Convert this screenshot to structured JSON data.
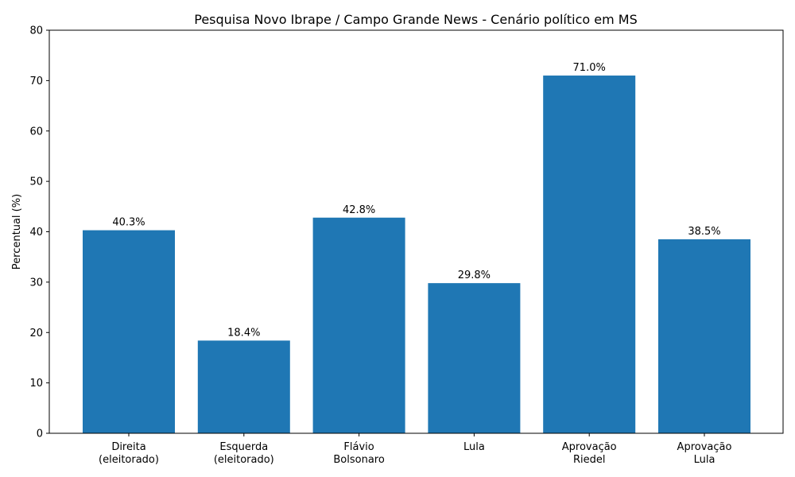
{
  "chart_data": {
    "type": "bar",
    "title": "Pesquisa Novo Ibrape / Campo Grande News - Cenário político em MS",
    "xlabel": "",
    "ylabel": "Percentual (%)",
    "ylim": [
      0,
      80
    ],
    "yticks": [
      "0",
      "10",
      "20",
      "30",
      "40",
      "50",
      "60",
      "70",
      "80"
    ],
    "categories": [
      [
        "Direita",
        "(eleitorado)"
      ],
      [
        "Esquerda",
        "(eleitorado)"
      ],
      [
        "Flávio",
        "Bolsonaro"
      ],
      [
        "Lula"
      ],
      [
        "Aprovação",
        "Riedel"
      ],
      [
        "Aprovação",
        "Lula"
      ]
    ],
    "values": [
      40.3,
      18.4,
      42.8,
      29.8,
      71.0,
      38.5
    ],
    "value_labels": [
      "40.3%",
      "18.4%",
      "42.8%",
      "29.8%",
      "71.0%",
      "38.5%"
    ],
    "bar_color": "#1f77b4",
    "grid": false,
    "legend": "none"
  }
}
